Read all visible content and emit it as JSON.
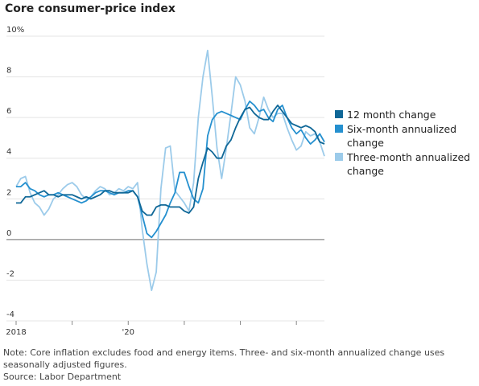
{
  "chart_data": {
    "type": "line",
    "title": "Core consumer-price index",
    "categories": [
      "2018",
      null,
      null,
      null,
      null,
      null,
      null,
      null,
      null,
      null,
      null,
      null,
      null,
      null,
      null,
      null,
      null,
      null,
      null,
      null,
      null,
      null,
      null,
      null,
      "'20",
      null,
      null,
      null,
      null,
      null,
      null,
      null,
      null,
      null,
      null,
      null,
      null,
      null,
      null,
      null,
      null,
      null,
      null,
      null,
      null,
      null,
      null,
      null,
      null,
      null,
      null,
      null,
      null,
      null,
      null,
      null,
      null,
      null,
      null,
      null,
      null,
      null,
      null,
      null,
      null,
      null,
      null
    ],
    "series": [
      {
        "name": "12 month change",
        "color": "#0f6797",
        "values": [
          1.8,
          1.8,
          2.1,
          2.1,
          2.2,
          2.3,
          2.4,
          2.2,
          2.2,
          2.1,
          2.2,
          2.2,
          2.2,
          2.1,
          2.0,
          2.1,
          2.0,
          2.1,
          2.2,
          2.4,
          2.4,
          2.3,
          2.3,
          2.3,
          2.3,
          2.4,
          2.1,
          1.4,
          1.2,
          1.2,
          1.6,
          1.7,
          1.7,
          1.6,
          1.6,
          1.6,
          1.4,
          1.3,
          1.6,
          3.0,
          3.8,
          4.5,
          4.3,
          4.0,
          4.0,
          4.6,
          4.9,
          5.5,
          6.0,
          6.4,
          6.5,
          6.2,
          6.0,
          5.9,
          5.9,
          6.3,
          6.6,
          6.3,
          6.0,
          5.7,
          5.6,
          5.5,
          5.6,
          5.5,
          5.3,
          4.8,
          4.7
        ]
      },
      {
        "name": "Six-month annualized change",
        "color": "#2590cf",
        "values": [
          2.6,
          2.6,
          2.8,
          2.5,
          2.4,
          2.2,
          2.1,
          2.2,
          2.2,
          2.3,
          2.2,
          2.1,
          2.0,
          1.9,
          1.8,
          1.9,
          2.1,
          2.3,
          2.4,
          2.4,
          2.3,
          2.2,
          2.3,
          2.3,
          2.4,
          2.4,
          2.1,
          1.2,
          0.3,
          0.1,
          0.4,
          0.8,
          1.2,
          1.8,
          2.3,
          3.3,
          3.3,
          2.6,
          2.0,
          1.8,
          2.5,
          5.1,
          5.9,
          6.2,
          6.3,
          6.2,
          6.1,
          6.0,
          5.9,
          6.4,
          6.8,
          6.6,
          6.3,
          6.4,
          6.0,
          5.8,
          6.4,
          6.6,
          6.0,
          5.5,
          5.2,
          5.4,
          5.0,
          4.7,
          4.9,
          5.2,
          4.8
        ]
      },
      {
        "name": "Three-month annualized change",
        "color": "#9ccbea",
        "values": [
          2.6,
          3.0,
          3.1,
          2.3,
          1.8,
          1.6,
          1.2,
          1.5,
          2.0,
          2.2,
          2.5,
          2.7,
          2.8,
          2.6,
          2.2,
          2.0,
          2.1,
          2.4,
          2.6,
          2.5,
          2.2,
          2.3,
          2.5,
          2.4,
          2.6,
          2.5,
          2.8,
          0.5,
          -1.2,
          -2.5,
          -1.6,
          2.5,
          4.5,
          4.6,
          2.4,
          2.1,
          1.8,
          1.4,
          2.8,
          6.0,
          8.0,
          9.3,
          7.0,
          4.5,
          3.0,
          4.5,
          6.2,
          8.0,
          7.6,
          6.8,
          5.5,
          5.2,
          6.0,
          7.0,
          6.4,
          6.0,
          6.2,
          6.2,
          5.5,
          4.9,
          4.4,
          4.6,
          5.3,
          5.1,
          5.2,
          4.8,
          4.1
        ]
      }
    ],
    "ylim": [
      -4,
      10
    ],
    "yticks": [
      -4,
      -2,
      0,
      2,
      4,
      6,
      8,
      {
        "value": 10,
        "label": "10%"
      }
    ],
    "grid": true,
    "note": "Note: Core inflation excludes food and energy items. Three- and six-month annualized change uses seasonally adjusted figures.",
    "source": "Source: Labor Department"
  }
}
